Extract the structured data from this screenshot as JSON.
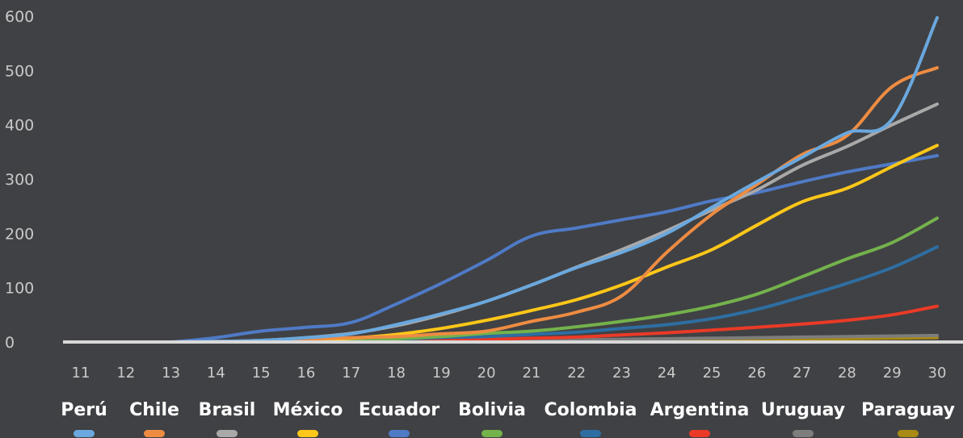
{
  "chart_data": {
    "type": "line",
    "title": "",
    "xlabel": "",
    "ylabel": "",
    "x": [
      11,
      12,
      13,
      14,
      15,
      16,
      17,
      18,
      19,
      20,
      21,
      22,
      23,
      24,
      25,
      26,
      27,
      28,
      29,
      30
    ],
    "x_tick_labels": [
      "11",
      "12",
      "13",
      "14",
      "15",
      "16",
      "17",
      "18",
      "19",
      "20",
      "21",
      "22",
      "23",
      "24",
      "25",
      "26",
      "27",
      "28",
      "29",
      "30"
    ],
    "ylim": [
      0,
      600
    ],
    "y_ticks": [
      0,
      100,
      200,
      300,
      400,
      500,
      600
    ],
    "y_tick_labels": [
      "0",
      "100",
      "200",
      "300",
      "400",
      "500",
      "600"
    ],
    "grid": false,
    "legend_position": "bottom",
    "series": [
      {
        "name": "Perú",
        "color": "#6aa8df",
        "values": [
          0,
          0,
          0,
          1,
          3,
          8,
          15,
          32,
          52,
          75,
          105,
          137,
          165,
          200,
          248,
          295,
          340,
          385,
          410,
          597
        ]
      },
      {
        "name": "Chile",
        "color": "#ee8c42",
        "values": [
          0,
          0,
          0,
          0,
          2,
          5,
          8,
          10,
          15,
          20,
          38,
          55,
          85,
          165,
          235,
          290,
          345,
          380,
          470,
          505
        ]
      },
      {
        "name": "Brasil",
        "color": "#a9a9a9",
        "values": [
          0,
          0,
          0,
          1,
          3,
          8,
          16,
          30,
          50,
          75,
          105,
          138,
          170,
          205,
          243,
          280,
          325,
          360,
          400,
          438
        ]
      },
      {
        "name": "México",
        "color": "#ffc719",
        "values": [
          0,
          0,
          0,
          0,
          1,
          3,
          7,
          14,
          25,
          40,
          58,
          78,
          105,
          138,
          170,
          215,
          258,
          283,
          323,
          362
        ]
      },
      {
        "name": "Ecuador",
        "color": "#4f7ac6",
        "values": [
          0,
          0,
          0,
          8,
          20,
          27,
          36,
          70,
          108,
          150,
          195,
          210,
          225,
          240,
          260,
          275,
          295,
          313,
          328,
          343
        ]
      },
      {
        "name": "Bolivia",
        "color": "#74b24c",
        "values": [
          0,
          0,
          0,
          0,
          1,
          2,
          4,
          6,
          10,
          16,
          20,
          28,
          38,
          50,
          66,
          88,
          120,
          153,
          183,
          228
        ]
      },
      {
        "name": "Colombia",
        "color": "#2e6ea2",
        "values": [
          0,
          0,
          0,
          0,
          1,
          2,
          3,
          5,
          8,
          10,
          14,
          18,
          25,
          32,
          43,
          60,
          83,
          108,
          137,
          175
        ]
      },
      {
        "name": "Argentina",
        "color": "#ea3a27",
        "values": [
          0,
          0,
          0,
          0,
          0,
          1,
          2,
          3,
          4,
          5,
          7,
          9,
          13,
          17,
          22,
          27,
          33,
          40,
          50,
          66
        ]
      },
      {
        "name": "Uruguay",
        "color": "#7d7d7d",
        "values": [
          0,
          0,
          0,
          0,
          0,
          0,
          0,
          1,
          1,
          2,
          3,
          4,
          5,
          6,
          7,
          8,
          9,
          10,
          11,
          12
        ]
      },
      {
        "name": "Paraguay",
        "color": "#a88a14",
        "values": [
          0,
          0,
          0,
          0,
          0,
          0,
          0,
          0,
          1,
          1,
          2,
          2,
          3,
          3,
          4,
          4,
          5,
          6,
          7,
          8
        ]
      }
    ]
  }
}
